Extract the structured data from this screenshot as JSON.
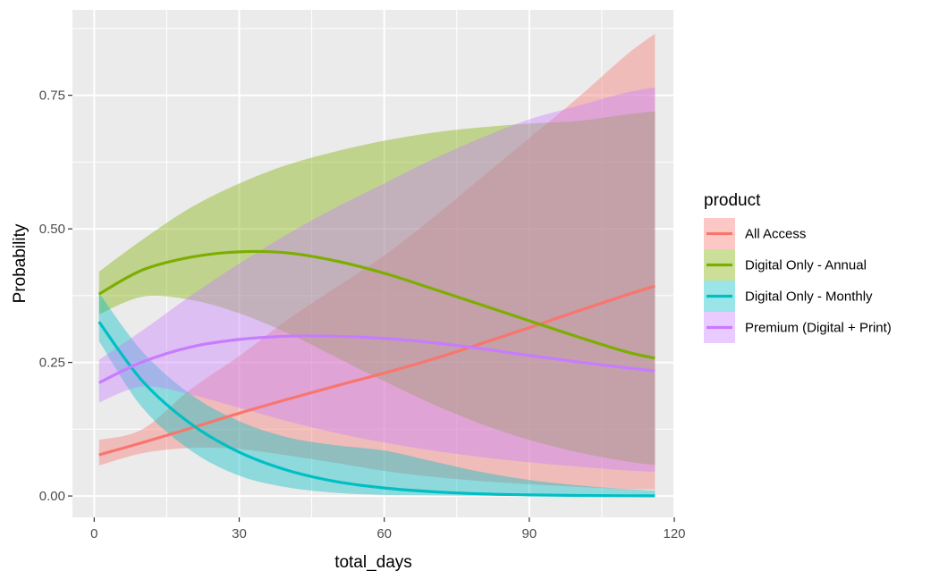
{
  "chart_data": {
    "type": "line",
    "title": "",
    "xlabel": "total_days",
    "ylabel": "Probability",
    "xlim": [
      -4.5,
      120
    ],
    "ylim": [
      -0.04,
      0.91
    ],
    "x_ticks": [
      0,
      30,
      60,
      90,
      120
    ],
    "x_tick_labels": [
      "0",
      "30",
      "60",
      "90",
      "120"
    ],
    "y_ticks": [
      0,
      0.25,
      0.5,
      0.75
    ],
    "y_tick_labels": [
      "0.00",
      "0.25",
      "0.50",
      "0.75"
    ],
    "grid": true,
    "legend": {
      "title": "product",
      "position": "right"
    },
    "series": [
      {
        "name": "All Access",
        "color": "#F8766D",
        "x": [
          1,
          10,
          20,
          30,
          40,
          50,
          60,
          70,
          80,
          90,
          100,
          110,
          116
        ],
        "y": [
          0.077,
          0.1,
          0.127,
          0.155,
          0.181,
          0.206,
          0.23,
          0.256,
          0.285,
          0.315,
          0.346,
          0.376,
          0.393
        ],
        "lower": [
          0.057,
          0.08,
          0.09,
          0.088,
          0.076,
          0.062,
          0.047,
          0.036,
          0.028,
          0.022,
          0.017,
          0.013,
          0.012
        ],
        "upper": [
          0.105,
          0.125,
          0.2,
          0.262,
          0.33,
          0.39,
          0.45,
          0.52,
          0.595,
          0.67,
          0.745,
          0.825,
          0.865
        ]
      },
      {
        "name": "Digital Only - Annual",
        "color": "#7CAE00",
        "x": [
          1,
          10,
          20,
          30,
          40,
          50,
          60,
          70,
          80,
          90,
          100,
          110,
          116
        ],
        "y": [
          0.378,
          0.423,
          0.447,
          0.457,
          0.455,
          0.44,
          0.417,
          0.388,
          0.358,
          0.328,
          0.298,
          0.27,
          0.258
        ],
        "lower": [
          0.34,
          0.373,
          0.367,
          0.342,
          0.305,
          0.26,
          0.215,
          0.172,
          0.135,
          0.105,
          0.082,
          0.065,
          0.058
        ],
        "upper": [
          0.42,
          0.48,
          0.54,
          0.585,
          0.62,
          0.645,
          0.665,
          0.68,
          0.69,
          0.697,
          0.702,
          0.714,
          0.72
        ]
      },
      {
        "name": "Digital Only - Monthly",
        "color": "#00BFC4",
        "x": [
          1,
          10,
          20,
          30,
          40,
          50,
          60,
          70,
          80,
          90,
          100,
          110,
          116
        ],
        "y": [
          0.326,
          0.215,
          0.135,
          0.082,
          0.048,
          0.027,
          0.015,
          0.008,
          0.004,
          0.002,
          0.001,
          0.0005,
          0.0003
        ],
        "lower": [
          0.29,
          0.165,
          0.085,
          0.038,
          0.016,
          0.006,
          0.002,
          0.001,
          0.0003,
          0.0001,
          0.0,
          0.0,
          0.0
        ],
        "upper": [
          0.38,
          0.27,
          0.19,
          0.14,
          0.11,
          0.095,
          0.085,
          0.065,
          0.045,
          0.03,
          0.02,
          0.013,
          0.01
        ]
      },
      {
        "name": "Premium (Digital + Print)",
        "color": "#C77CFF",
        "x": [
          1,
          10,
          20,
          30,
          40,
          50,
          60,
          70,
          80,
          90,
          100,
          110,
          116
        ],
        "y": [
          0.212,
          0.251,
          0.279,
          0.293,
          0.299,
          0.299,
          0.295,
          0.287,
          0.276,
          0.263,
          0.251,
          0.24,
          0.234
        ],
        "lower": [
          0.175,
          0.205,
          0.19,
          0.165,
          0.14,
          0.118,
          0.1,
          0.085,
          0.073,
          0.063,
          0.055,
          0.048,
          0.045
        ],
        "upper": [
          0.255,
          0.31,
          0.375,
          0.435,
          0.49,
          0.54,
          0.585,
          0.63,
          0.67,
          0.705,
          0.73,
          0.755,
          0.765
        ]
      }
    ]
  }
}
